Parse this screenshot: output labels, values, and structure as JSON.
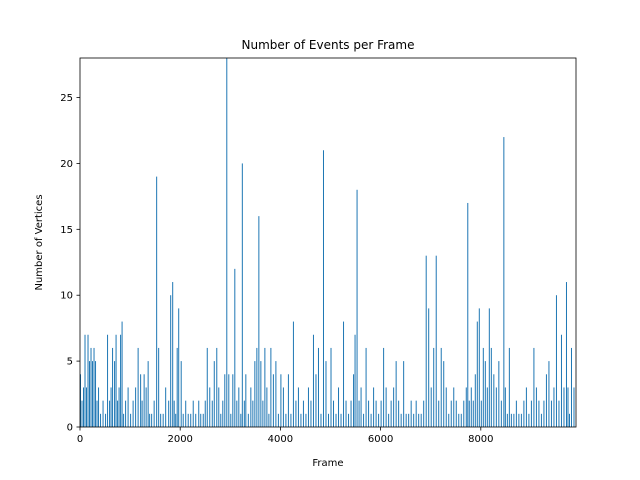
{
  "chart_data": {
    "type": "bar",
    "title": "Number of Events per Frame",
    "xlabel": "Frame",
    "ylabel": "Number of Vertices",
    "xlim": [
      0,
      9900
    ],
    "ylim": [
      0,
      28
    ],
    "xticks": [
      0,
      2000,
      4000,
      6000,
      8000
    ],
    "xtick_labels": [
      "0",
      "2000",
      "4000",
      "6000",
      "8000"
    ],
    "yticks": [
      0,
      5,
      10,
      15,
      20,
      25
    ],
    "ytick_labels": [
      "0",
      "5",
      "10",
      "15",
      "20",
      "25"
    ],
    "grid": false,
    "bar_color": "#1f77b4",
    "x": [
      0,
      30,
      60,
      90,
      120,
      150,
      180,
      210,
      240,
      270,
      300,
      330,
      360,
      400,
      450,
      500,
      540,
      580,
      610,
      640,
      680,
      710,
      740,
      770,
      800,
      830,
      860,
      900,
      950,
      1000,
      1050,
      1100,
      1150,
      1200,
      1230,
      1270,
      1310,
      1350,
      1380,
      1420,
      1470,
      1520,
      1560,
      1600,
      1650,
      1700,
      1760,
      1800,
      1840,
      1870,
      1900,
      1930,
      1960,
      2010,
      2050,
      2100,
      2150,
      2200,
      2250,
      2300,
      2360,
      2400,
      2450,
      2490,
      2530,
      2580,
      2630,
      2670,
      2720,
      2760,
      2800,
      2840,
      2880,
      2920,
      2960,
      3000,
      3040,
      3080,
      3120,
      3160,
      3200,
      3230,
      3270,
      3300,
      3350,
      3400,
      3440,
      3480,
      3520,
      3560,
      3600,
      3640,
      3680,
      3720,
      3760,
      3800,
      3850,
      3900,
      3950,
      4000,
      4050,
      4100,
      4150,
      4200,
      4250,
      4300,
      4350,
      4400,
      4450,
      4500,
      4550,
      4600,
      4650,
      4700,
      4750,
      4800,
      4850,
      4900,
      4950,
      5000,
      5050,
      5100,
      5150,
      5200,
      5250,
      5300,
      5350,
      5400,
      5450,
      5480,
      5520,
      5560,
      5600,
      5650,
      5700,
      5750,
      5800,
      5850,
      5900,
      5950,
      6000,
      6050,
      6100,
      6150,
      6200,
      6250,
      6300,
      6350,
      6400,
      6450,
      6500,
      6550,
      6600,
      6650,
      6700,
      6750,
      6800,
      6850,
      6900,
      6950,
      7000,
      7050,
      7100,
      7150,
      7200,
      7250,
      7300,
      7350,
      7400,
      7450,
      7500,
      7550,
      7600,
      7650,
      7700,
      7730,
      7760,
      7800,
      7840,
      7880,
      7920,
      7960,
      8000,
      8040,
      8080,
      8120,
      8160,
      8200,
      8250,
      8300,
      8350,
      8400,
      8450,
      8480,
      8520,
      8560,
      8600,
      8650,
      8700,
      8750,
      8800,
      8850,
      8900,
      8950,
      9000,
      9050,
      9100,
      9150,
      9200,
      9250,
      9300,
      9350,
      9400,
      9450,
      9500,
      9550,
      9600,
      9650,
      9700,
      9730,
      9760,
      9800,
      9850
    ],
    "values": [
      4,
      2,
      3,
      7,
      3,
      7,
      5,
      6,
      5,
      6,
      5,
      2,
      3,
      1,
      2,
      1,
      7,
      2,
      3,
      6,
      5,
      7,
      2,
      3,
      7,
      8,
      1,
      2,
      3,
      1,
      2,
      3,
      6,
      4,
      2,
      4,
      3,
      5,
      1,
      1,
      2,
      19,
      6,
      1,
      1,
      3,
      2,
      10,
      11,
      2,
      1,
      6,
      9,
      5,
      1,
      2,
      1,
      1,
      2,
      1,
      2,
      1,
      1,
      2,
      6,
      3,
      2,
      5,
      6,
      3,
      1,
      2,
      4,
      28,
      4,
      1,
      4,
      12,
      2,
      3,
      1,
      20,
      2,
      4,
      1,
      3,
      2,
      5,
      6,
      16,
      5,
      2,
      6,
      3,
      1,
      6,
      4,
      5,
      1,
      4,
      3,
      1,
      4,
      1,
      8,
      2,
      3,
      1,
      2,
      1,
      3,
      2,
      7,
      4,
      6,
      1,
      21,
      5,
      1,
      6,
      2,
      1,
      3,
      1,
      8,
      2,
      1,
      2,
      4,
      7,
      18,
      2,
      3,
      1,
      6,
      2,
      1,
      3,
      2,
      1,
      2,
      6,
      3,
      1,
      2,
      3,
      5,
      2,
      1,
      5,
      1,
      1,
      2,
      1,
      2,
      1,
      1,
      2,
      13,
      9,
      3,
      6,
      13,
      2,
      6,
      5,
      3,
      1,
      2,
      3,
      2,
      1,
      1,
      2,
      3,
      17,
      2,
      3,
      2,
      4,
      8,
      9,
      2,
      6,
      5,
      3,
      9,
      6,
      4,
      3,
      5,
      2,
      22,
      3,
      1,
      6,
      1,
      1,
      2,
      1,
      1,
      2,
      3,
      1,
      2,
      6,
      3,
      2,
      1,
      2,
      4,
      5,
      2,
      3,
      10,
      2,
      7,
      3,
      11,
      3,
      1,
      6,
      3
    ]
  }
}
